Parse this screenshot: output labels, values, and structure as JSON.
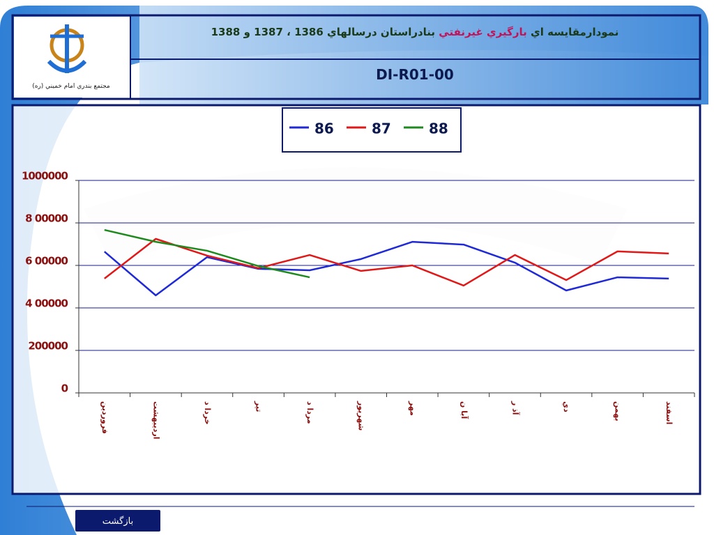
{
  "header": {
    "title": [
      {
        "text": "نمودارمقايسه اي ",
        "color": "#1a3a1a"
      },
      {
        "text": "بارگيري غيرنفتي",
        "color": "#c0145a"
      },
      {
        "text": " بنادراستان درسالهاي 1386 ، 1387 و 1388",
        "color": "#1a3a1a"
      }
    ],
    "code": "DI-R01-00",
    "org": "مجتمع بندري امام خميني (ره)"
  },
  "chart_data": {
    "type": "line",
    "categories": [
      "فروردين",
      "ارديبهشت",
      "خردا د",
      "تير",
      "مردا د",
      "شهريور",
      "مهر",
      "آبا ن",
      "آذ ر",
      "دي",
      "بهمن",
      "اسفند"
    ],
    "series": [
      {
        "name": "86",
        "color": "#1f2ad6",
        "values": [
          665000,
          459000,
          639000,
          584000,
          577000,
          630000,
          711000,
          698000,
          613000,
          482000,
          544000,
          538000
        ]
      },
      {
        "name": "87",
        "color": "#e01818",
        "values": [
          538000,
          725000,
          646000,
          587000,
          649000,
          574000,
          600000,
          505000,
          649000,
          531000,
          666000,
          656000
        ]
      },
      {
        "name": "88",
        "color": "#1e8a1e",
        "values": [
          767000,
          711000,
          669000,
          597000,
          544000,
          null,
          null,
          null,
          null,
          null,
          null,
          null
        ]
      }
    ],
    "ylim": [
      0,
      1000000
    ],
    "yticks": [
      0,
      200000,
      {
        "value": 400000,
        "label": "4 00000"
      },
      {
        "value": 600000,
        "label": "6 00000"
      },
      {
        "value": 800000,
        "label": "8 00000"
      },
      1000000
    ],
    "grid": true,
    "legend": "top"
  },
  "footer": {
    "button": "بازگشت"
  }
}
